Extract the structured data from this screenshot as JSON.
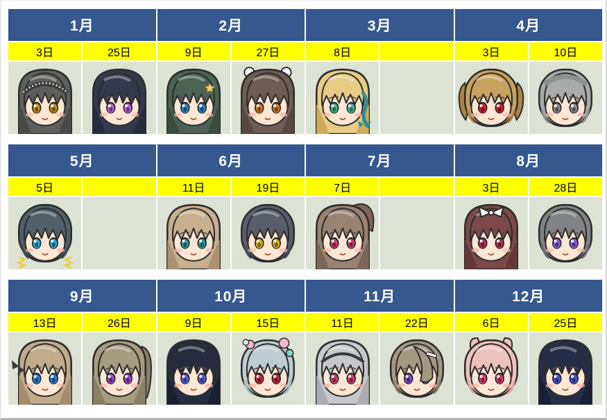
{
  "title": "character-birthday-calendar",
  "theme": {
    "header_bg": "#35598e",
    "header_text": "#ffffff",
    "date_bg": "#ffff00",
    "date_text": "#000000",
    "cell_bg": "#dde3d4",
    "grid": "#ffffff",
    "outline": "#2d2d2d",
    "skin": "#fce6d4",
    "blush": "#f7b9ab"
  },
  "rows": [
    {
      "months": [
        {
          "label": "1月",
          "cells": [
            {
              "day": "3日",
              "portrait": {
                "desc": "dark gray long hair, amber eyes, lace headband",
                "hair": "#5f5f5e",
                "shade": "#49494a",
                "eyes": "#c79018",
                "style": "long",
                "accessory": "lace-headband",
                "accessory_color": "#3d3d3f"
              }
            },
            {
              "day": "25日",
              "portrait": {
                "desc": "blue-black long hair, violet eyes",
                "hair": "#343a4d",
                "shade": "#272c3c",
                "eyes": "#b763d9",
                "style": "long",
                "accessory": "none"
              }
            }
          ]
        },
        {
          "label": "2月",
          "cells": [
            {
              "day": "9日",
              "portrait": {
                "desc": "dark green long hair, blue eyes, star hairpin",
                "hair": "#4a6354",
                "shade": "#394e41",
                "eyes": "#2f86c8",
                "style": "long",
                "accessory": "star",
                "accessory_color": "#e7cf6e"
              }
            },
            {
              "day": "27日",
              "portrait": {
                "desc": "gray-brown hair, orange eyes, twin white buns",
                "hair": "#6e5c55",
                "shade": "#584741",
                "eyes": "#d3791f",
                "style": "long",
                "accessory": "buns",
                "accessory_color": "#ffffff"
              }
            }
          ]
        },
        {
          "label": "3月",
          "cells": [
            {
              "day": "8日",
              "portrait": {
                "desc": "blonde long hair, green eyes, teal braid ribbon",
                "hair": "#e7cc85",
                "shade": "#cfab5c",
                "eyes": "#43bb90",
                "style": "long",
                "accessory": "braid-ribbon",
                "accessory_color": "#2e8d95"
              }
            },
            {
              "day": "",
              "portrait": null
            }
          ]
        },
        {
          "label": "4月",
          "cells": [
            {
              "day": "3日",
              "portrait": {
                "desc": "tan twin-tail hair, red eyes",
                "hair": "#c9a161",
                "shade": "#ad8347",
                "eyes": "#ce232f",
                "style": "bob",
                "accessory": "twintails"
              }
            },
            {
              "day": "10日",
              "portrait": {
                "desc": "silver hair with crown braid, gray eyes",
                "hair": "#a9abaa",
                "shade": "#8e918f",
                "eyes": "#8e8b95",
                "style": "bob",
                "accessory": "crown"
              }
            }
          ]
        }
      ]
    },
    {
      "months": [
        {
          "label": "5月",
          "cells": [
            {
              "day": "5日",
              "portrait": {
                "desc": "dark slate hair, cyan eyes, gold frills",
                "hair": "#50606a",
                "shade": "#3e4b53",
                "eyes": "#2ba7dc",
                "style": "bob",
                "accessory": "frills",
                "accessory_color": "#e6d24c"
              }
            },
            {
              "day": "",
              "portrait": null
            }
          ]
        },
        {
          "label": "6月",
          "cells": [
            {
              "day": "11日",
              "portrait": {
                "desc": "light brown long hair, teal eyes",
                "hair": "#c8b08f",
                "shade": "#ac9270",
                "eyes": "#2b9b9c",
                "style": "long",
                "accessory": "none"
              }
            },
            {
              "day": "19日",
              "portrait": {
                "desc": "dark gray-blue bob, yellow eyes",
                "hair": "#5a5e6c",
                "shade": "#474a57",
                "eyes": "#d5b315",
                "style": "bob",
                "accessory": "none"
              }
            }
          ]
        },
        {
          "label": "7月",
          "cells": [
            {
              "day": "7日",
              "portrait": {
                "desc": "brown hair with ponytail, pink-red eyes",
                "hair": "#9a8271",
                "shade": "#7d6656",
                "eyes": "#d63a6d",
                "style": "long",
                "accessory": "ponytail"
              }
            },
            {
              "day": "",
              "portrait": null
            }
          ]
        },
        {
          "label": "8月",
          "cells": [
            {
              "day": "3日",
              "portrait": {
                "desc": "maroon hair, dark red eyes, white ribbon",
                "hair": "#7d4848",
                "shade": "#643839",
                "eyes": "#b23354",
                "style": "long",
                "accessory": "white-ribbon",
                "accessory_color": "#ffffff"
              }
            },
            {
              "day": "28日",
              "portrait": {
                "desc": "gray hair, violet eyes",
                "hair": "#808284",
                "shade": "#6a6c6e",
                "eyes": "#8a5cdf",
                "style": "bob",
                "accessory": "none"
              }
            }
          ]
        }
      ]
    },
    {
      "months": [
        {
          "label": "9月",
          "cells": [
            {
              "day": "13日",
              "portrait": {
                "desc": "light brown long hair, blue eyes, black side bow",
                "hair": "#c2ab8b",
                "shade": "#a68d6c",
                "eyes": "#2b7fdf",
                "style": "long",
                "accessory": "side-bow",
                "accessory_color": "#3a3a3a"
              }
            },
            {
              "day": "26日",
              "portrait": {
                "desc": "ash brown hair, side ponytail, violet eyes",
                "hair": "#a79b80",
                "shade": "#8b7f66",
                "eyes": "#9a4ad5",
                "style": "long",
                "accessory": "side-pony"
              }
            }
          ]
        },
        {
          "label": "10月",
          "cells": [
            {
              "day": "9日",
              "portrait": {
                "desc": "blue-black long hair, blue-violet eyes",
                "hair": "#262c40",
                "shade": "#1b2030",
                "eyes": "#5b60d7",
                "style": "long",
                "accessory": "none"
              }
            },
            {
              "day": "15日",
              "portrait": {
                "desc": "pale blue hair with candy hairpins, red eyes",
                "hair": "#bccdd1",
                "shade": "#a2b5ba",
                "eyes": "#c22a3d",
                "style": "bob",
                "accessory": "candy-pins"
              }
            }
          ]
        },
        {
          "label": "11月",
          "cells": [
            {
              "day": "11日",
              "portrait": {
                "desc": "silver-white long hair, black headband, pink-red eyes",
                "hair": "#c6c8cc",
                "shade": "#abadb2",
                "eyes": "#d4416a",
                "style": "long",
                "accessory": "headband",
                "accessory_color": "#3a3a3c"
              }
            },
            {
              "day": "22日",
              "portrait": {
                "desc": "ash beige hair over right eye, violet eyes, white hairclip",
                "hair": "#a59880",
                "shade": "#8a7d66",
                "eyes": "#7e4ece",
                "style": "bob",
                "accessory": "swoop-clip",
                "accessory_color": "#ffffff"
              }
            }
          ]
        },
        {
          "label": "12月",
          "cells": [
            {
              "day": "6日",
              "portrait": {
                "desc": "pink hair with animal ears, pink-red eyes",
                "hair": "#eec2ba",
                "shade": "#dfa59c",
                "eyes": "#d84070",
                "style": "bob",
                "accessory": "ears"
              }
            },
            {
              "day": "25日",
              "portrait": {
                "desc": "dark navy long hair, blue eyes",
                "hair": "#262d49",
                "shade": "#1b2238",
                "eyes": "#4a55cb",
                "style": "long",
                "accessory": "none"
              }
            }
          ]
        }
      ]
    }
  ]
}
